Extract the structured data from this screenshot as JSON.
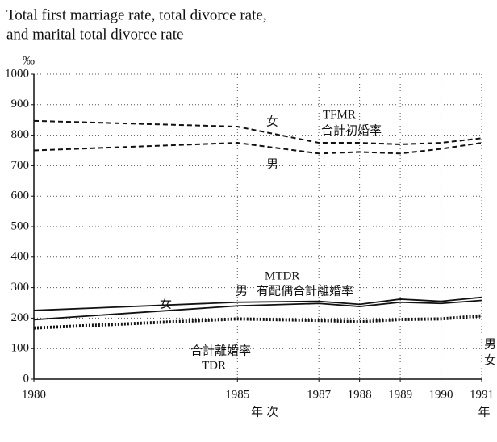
{
  "chart_data": {
    "type": "line",
    "title": [
      "Total first marriage rate, total divorce rate,",
      "and marital total divorce rate"
    ],
    "y_unit": "‰",
    "x": [
      1980,
      1985,
      1987,
      1988,
      1989,
      1990,
      1991
    ],
    "xlim": [
      1980,
      1991
    ],
    "xticks": [
      1980,
      1985,
      1987,
      1988,
      1989,
      1990,
      1991
    ],
    "ylim": [
      0,
      1000
    ],
    "yticks": [
      0,
      100,
      200,
      300,
      400,
      500,
      600,
      700,
      800,
      900,
      1000
    ],
    "grid": true,
    "x_label": "年 次",
    "x_label_right": "年",
    "annotations": [
      "TFMR",
      "合計初婚率",
      "MTDR",
      "有配偶合計離婚率",
      "合計離婚率",
      "TDR"
    ],
    "series": [
      {
        "name": "女",
        "color": "#111111",
        "dash": "dashed",
        "values": [
          847,
          828,
          775,
          775,
          770,
          775,
          790
        ]
      },
      {
        "name": "男",
        "color": "#111111",
        "dash": "dashed",
        "values": [
          750,
          775,
          740,
          745,
          740,
          755,
          775
        ]
      },
      {
        "name": "女",
        "color": "#111111",
        "dash": "solid",
        "values": [
          225,
          252,
          255,
          245,
          262,
          255,
          268
        ]
      },
      {
        "name": "男",
        "color": "#111111",
        "dash": "solid",
        "values": [
          195,
          240,
          248,
          238,
          252,
          248,
          258
        ]
      },
      {
        "name": "男",
        "color": "#111111",
        "dash": "dotted",
        "values": [
          170,
          200,
          195,
          190,
          198,
          200,
          210
        ]
      },
      {
        "name": "女",
        "color": "#111111",
        "dash": "dotted",
        "values": [
          165,
          195,
          190,
          186,
          193,
          195,
          205
        ]
      }
    ]
  }
}
